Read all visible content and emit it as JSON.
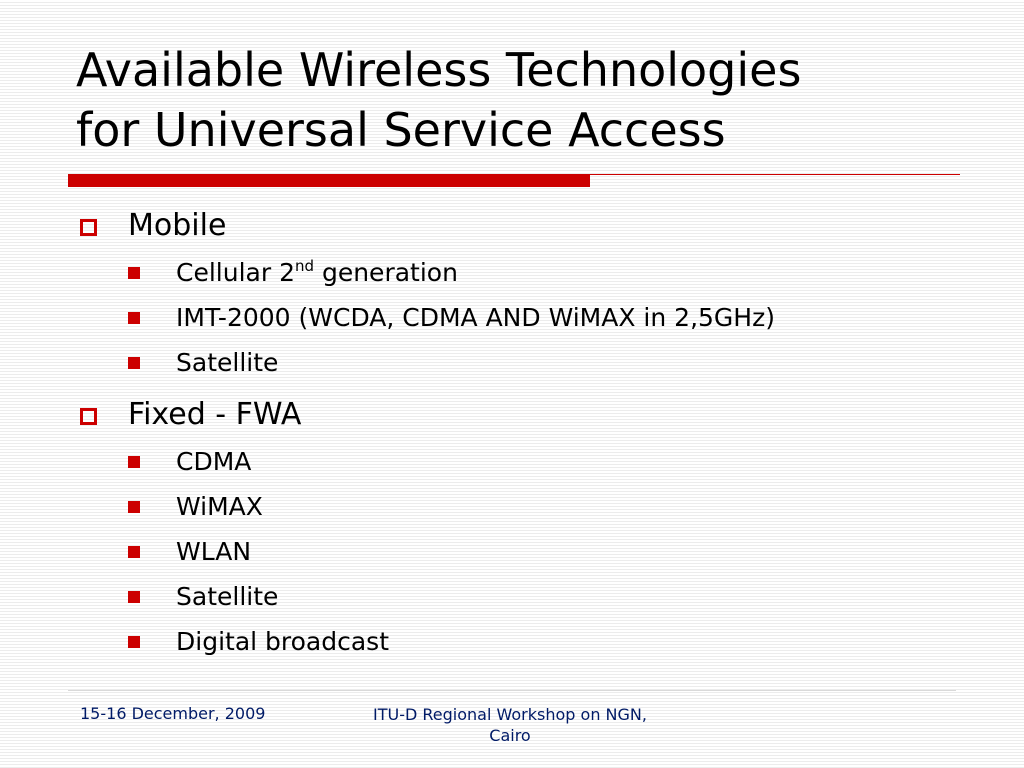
{
  "slide": {
    "title_line1": "Available Wireless Technologies",
    "title_line2": "for Universal Service Access"
  },
  "sections": [
    {
      "label": "Mobile",
      "items": [
        {
          "text": "Cellular 2",
          "sup": "nd",
          "suffix": " generation"
        },
        {
          "text": "IMT-2000 (WCDA, CDMA AND WiMAX in 2,5GHz)"
        },
        {
          "text": "Satellite"
        }
      ]
    },
    {
      "label": "Fixed - FWA",
      "items": [
        {
          "text": "CDMA"
        },
        {
          "text": "WiMAX"
        },
        {
          "text": "WLAN"
        },
        {
          "text": "Satellite"
        },
        {
          "text": "Digital broadcast"
        }
      ]
    }
  ],
  "footer": {
    "date": "15-16 December, 2009",
    "event_line1": "ITU-D Regional Workshop on NGN,",
    "event_line2": "Cairo"
  },
  "colors": {
    "accent": "#cc0000",
    "footer_text": "#001a66"
  }
}
